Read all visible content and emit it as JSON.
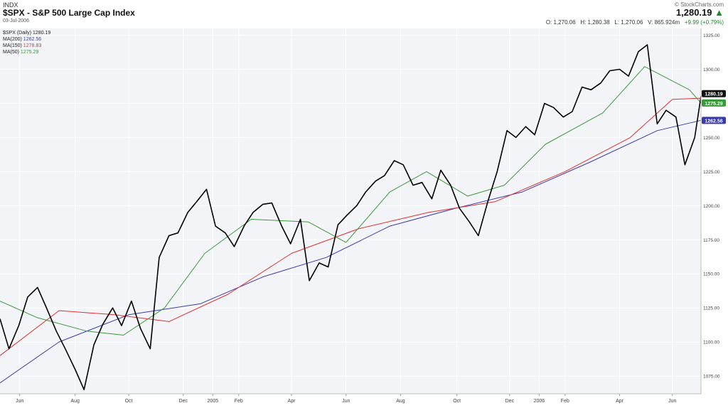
{
  "header": {
    "exchange": "INDX",
    "copyright": "© StockCharts.com",
    "title": "$SPX - S&P 500 Large Cap Index",
    "date": "03-Jul-2006",
    "last_price": "1,280.19",
    "trend_arrow": "▲",
    "ohlc": {
      "open": "O: 1,270.06",
      "high": "H: 1,280.38",
      "low": "L: 1,270.06",
      "volume": "V: 865.924m",
      "change": "+9.99 (+0.79%)"
    }
  },
  "legend": [
    {
      "label": "$SPX (Daily)",
      "value": "1280.19",
      "color": "#000000"
    },
    {
      "label": "MA(200)",
      "value": "1262.56",
      "color": "#3a3aa8"
    },
    {
      "label": "MA(150)",
      "value": "1278.83",
      "color": "#e03030"
    },
    {
      "label": "MA(50)",
      "value": "1275.29",
      "color": "#3a9a3a"
    }
  ],
  "colors": {
    "price": "#000000",
    "ma200": "#3a3aa8",
    "ma150": "#e03030",
    "ma50": "#3a9a3a",
    "plot_bg": "#f3f4f8",
    "grid": "#ffffff",
    "up": "#1a8a2a"
  },
  "chart_data": {
    "type": "line",
    "ylim": [
      1062,
      1330
    ],
    "y_ticks": [
      "1075.00",
      "1100.00",
      "1125.00",
      "1150.00",
      "1175.00",
      "1200.00",
      "1225.00",
      "1250.00",
      "1275.00",
      "1300.00",
      "1325.00"
    ],
    "y_tick_values": [
      1075,
      1100,
      1125,
      1150,
      1175,
      1200,
      1225,
      1250,
      1275,
      1300,
      1325
    ],
    "x_tick_labels": [
      "Jun",
      "Aug",
      "Oct",
      "Dec",
      "2005",
      "Feb",
      "Apr",
      "Jun",
      "Aug",
      "Oct",
      "Dec",
      "2006",
      "Feb",
      "Apr",
      "Jun"
    ],
    "x_tick_dates": [
      "2004-06-01",
      "2004-08-02",
      "2004-10-01",
      "2004-12-01",
      "2005-01-03",
      "2005-02-01",
      "2005-04-01",
      "2005-06-01",
      "2005-08-01",
      "2005-10-03",
      "2005-12-01",
      "2006-01-03",
      "2006-02-01",
      "2006-04-03",
      "2006-06-01"
    ],
    "x_range": [
      "2004-05-10",
      "2006-07-03"
    ],
    "price_labels": {
      "last": "1280.19",
      "ma50": "1275.29",
      "ma200": "1262.56"
    },
    "series": [
      {
        "name": "$SPX (Daily)",
        "x": [
          "2004-05-10",
          "2004-05-20",
          "2004-05-31",
          "2004-06-10",
          "2004-06-21",
          "2004-07-01",
          "2004-07-12",
          "2004-07-22",
          "2004-08-02",
          "2004-08-12",
          "2004-08-23",
          "2004-09-02",
          "2004-09-13",
          "2004-09-23",
          "2004-10-04",
          "2004-10-14",
          "2004-10-25",
          "2004-11-04",
          "2004-11-15",
          "2004-11-25",
          "2004-12-06",
          "2004-12-16",
          "2004-12-27",
          "2005-01-06",
          "2005-01-17",
          "2005-01-27",
          "2005-02-07",
          "2005-02-17",
          "2005-02-28",
          "2005-03-10",
          "2005-03-21",
          "2005-03-31",
          "2005-04-11",
          "2005-04-21",
          "2005-05-02",
          "2005-05-12",
          "2005-05-23",
          "2005-06-02",
          "2005-06-13",
          "2005-06-23",
          "2005-07-04",
          "2005-07-14",
          "2005-07-25",
          "2005-08-04",
          "2005-08-15",
          "2005-08-25",
          "2005-09-05",
          "2005-09-15",
          "2005-09-26",
          "2005-10-06",
          "2005-10-17",
          "2005-10-27",
          "2005-11-07",
          "2005-11-17",
          "2005-11-28",
          "2005-12-08",
          "2005-12-19",
          "2005-12-29",
          "2006-01-09",
          "2006-01-19",
          "2006-01-30",
          "2006-02-09",
          "2006-02-20",
          "2006-03-02",
          "2006-03-13",
          "2006-03-23",
          "2006-04-03",
          "2006-04-13",
          "2006-04-24",
          "2006-05-04",
          "2006-05-15",
          "2006-05-25",
          "2006-06-05",
          "2006-06-15",
          "2006-06-26",
          "2006-07-03"
        ],
        "y": [
          1117,
          1095,
          1112,
          1133,
          1140,
          1125,
          1108,
          1095,
          1080,
          1065,
          1098,
          1113,
          1125,
          1112,
          1130,
          1110,
          1095,
          1162,
          1178,
          1180,
          1195,
          1203,
          1212,
          1185,
          1180,
          1170,
          1185,
          1195,
          1201,
          1202,
          1185,
          1172,
          1190,
          1145,
          1158,
          1155,
          1186,
          1193,
          1200,
          1210,
          1218,
          1222,
          1233,
          1230,
          1215,
          1217,
          1205,
          1226,
          1215,
          1198,
          1188,
          1178,
          1204,
          1225,
          1255,
          1250,
          1258,
          1252,
          1275,
          1272,
          1265,
          1269,
          1287,
          1285,
          1290,
          1299,
          1300,
          1295,
          1313,
          1318,
          1260,
          1270,
          1265,
          1230,
          1250,
          1280.19
        ]
      },
      {
        "name": "MA(200)",
        "x": [
          "2004-05-10",
          "2004-07-15",
          "2004-10-01",
          "2004-12-20",
          "2005-03-01",
          "2005-05-10",
          "2005-07-20",
          "2005-10-01",
          "2005-12-15",
          "2006-03-01",
          "2006-05-15",
          "2006-07-03"
        ],
        "y": [
          1070,
          1100,
          1120,
          1128,
          1148,
          1162,
          1185,
          1198,
          1210,
          1232,
          1255,
          1262.56
        ]
      },
      {
        "name": "MA(150)",
        "x": [
          "2004-05-10",
          "2004-07-15",
          "2004-09-15",
          "2004-11-15",
          "2005-01-20",
          "2005-04-01",
          "2005-06-15",
          "2005-09-01",
          "2005-11-15",
          "2006-02-01",
          "2006-04-15",
          "2006-06-01",
          "2006-07-03"
        ],
        "y": [
          1090,
          1123,
          1120,
          1115,
          1135,
          1165,
          1183,
          1195,
          1203,
          1225,
          1250,
          1278,
          1278.83
        ]
      },
      {
        "name": "MA(50)",
        "x": [
          "2004-05-10",
          "2004-06-20",
          "2004-08-15",
          "2004-09-25",
          "2004-11-10",
          "2004-12-25",
          "2005-02-15",
          "2005-04-20",
          "2005-06-01",
          "2005-07-20",
          "2005-08-30",
          "2005-10-15",
          "2005-11-25",
          "2006-01-10",
          "2006-03-15",
          "2006-05-01",
          "2006-06-20",
          "2006-07-03"
        ],
        "y": [
          1130,
          1118,
          1108,
          1105,
          1125,
          1165,
          1190,
          1188,
          1173,
          1210,
          1225,
          1207,
          1215,
          1245,
          1268,
          1302,
          1285,
          1275.29
        ]
      }
    ]
  }
}
